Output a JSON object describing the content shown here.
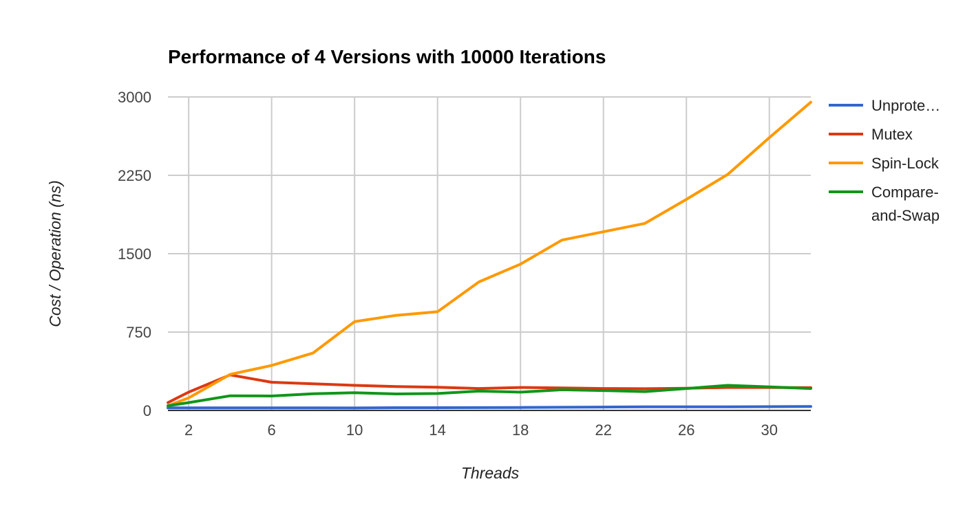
{
  "chart_data": {
    "type": "line",
    "title": "Performance of 4 Versions with 10000 Iterations",
    "xlabel": "Threads",
    "ylabel": "Cost / Operation (ns)",
    "xlim": [
      1,
      32
    ],
    "ylim": [
      0,
      3000
    ],
    "x_ticks": [
      2,
      6,
      10,
      14,
      18,
      22,
      26,
      30
    ],
    "y_ticks": [
      0,
      750,
      1500,
      2250,
      3000
    ],
    "grid": true,
    "legend": "right",
    "x": [
      1,
      2,
      4,
      6,
      8,
      10,
      12,
      14,
      16,
      18,
      20,
      22,
      24,
      26,
      28,
      30,
      32
    ],
    "series": [
      {
        "name": "Unprote…",
        "color": "#3366cc",
        "values": [
          25,
          25,
          25,
          25,
          25,
          24,
          26,
          26,
          27,
          28,
          30,
          32,
          34,
          34,
          35,
          36,
          38
        ]
      },
      {
        "name": "Mutex",
        "color": "#dc3912",
        "values": [
          75,
          175,
          340,
          270,
          255,
          240,
          228,
          222,
          210,
          220,
          215,
          210,
          208,
          212,
          220,
          220,
          218
        ]
      },
      {
        "name": "Spin-Lock",
        "color": "#ff9900",
        "values": [
          45,
          120,
          345,
          430,
          550,
          850,
          910,
          945,
          1230,
          1400,
          1630,
          1710,
          1790,
          2020,
          2260,
          2610,
          2950
        ]
      },
      {
        "name": "Compare-and-Swap",
        "label_lines": [
          "Compare-",
          "and-Swap"
        ],
        "color": "#109618",
        "values": [
          45,
          75,
          140,
          138,
          160,
          170,
          158,
          162,
          185,
          175,
          198,
          190,
          180,
          210,
          240,
          225,
          210
        ]
      }
    ]
  }
}
